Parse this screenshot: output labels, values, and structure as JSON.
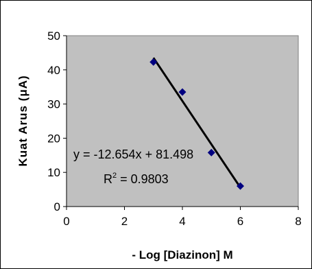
{
  "chart_data": {
    "type": "scatter",
    "xlabel": "- Log [Diazinon] M",
    "ylabel": "Kuat Arus (μA)",
    "xlim": [
      0,
      8
    ],
    "ylim": [
      0,
      50
    ],
    "xticks": [
      0,
      2,
      4,
      6,
      8
    ],
    "yticks": [
      0,
      10,
      20,
      30,
      40,
      50
    ],
    "grid": false,
    "plot_background": "#c0c0c0",
    "series": [
      {
        "x": [
          3,
          4,
          5,
          6
        ],
        "y": [
          42.3,
          33.5,
          15.8,
          6.0
        ],
        "marker": "diamond",
        "color": "#000080"
      }
    ],
    "trendline": {
      "slope": -12.654,
      "intercept": 81.498,
      "x_range": [
        3,
        6
      ],
      "color": "#000000"
    },
    "annotations": {
      "equation": "y = -12.654x + 81.498",
      "r2_prefix": "R",
      "r2_sup": "2",
      "r2_suffix": " = 0.9803"
    }
  }
}
